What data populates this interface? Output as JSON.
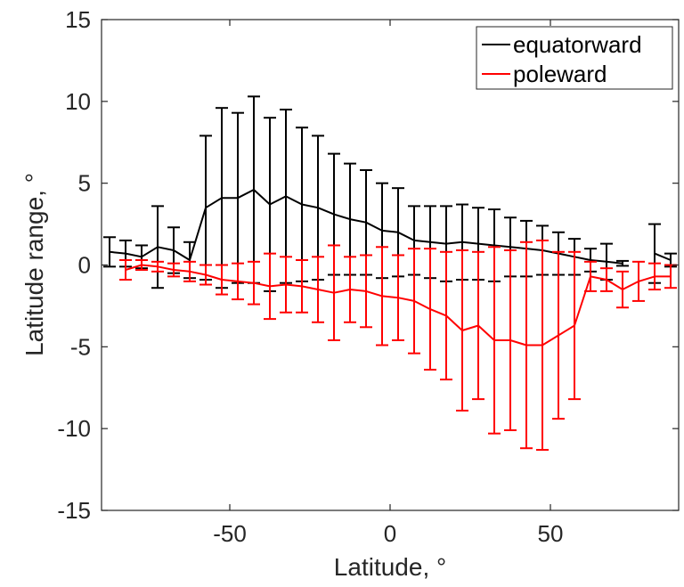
{
  "chart_data": {
    "type": "line",
    "xlabel": "Latitude, °",
    "ylabel": "Latitude range, °",
    "xlim": [
      -90,
      90
    ],
    "ylim": [
      -15,
      15
    ],
    "xticks": [
      -50,
      0,
      50
    ],
    "yticks": [
      -15,
      -10,
      -5,
      0,
      5,
      10,
      15
    ],
    "grid": false,
    "legend_position": "top-right",
    "series": [
      {
        "name": "equatorward",
        "color": "#000000",
        "segments": [
          {
            "x": [
              -87.5,
              -82.5,
              -77.5,
              -72.5,
              -67.5,
              -62.5,
              -57.5,
              -52.5,
              -47.5,
              -42.5,
              -37.5,
              -32.5,
              -27.5,
              -22.5,
              -17.5,
              -12.5,
              -7.5,
              -2.5,
              2.5,
              7.5,
              12.5,
              17.5,
              22.5,
              27.5,
              32.5,
              37.5,
              42.5,
              47.5,
              52.5,
              57.5,
              62.5,
              67.5,
              72.5
            ],
            "y": [
              0.8,
              0.7,
              0.5,
              1.1,
              0.9,
              0.3,
              3.5,
              4.1,
              4.1,
              4.6,
              3.7,
              4.2,
              3.7,
              3.5,
              3.1,
              2.8,
              2.6,
              2.1,
              2.0,
              1.5,
              1.4,
              1.3,
              1.4,
              1.3,
              1.2,
              1.1,
              1.0,
              0.9,
              0.7,
              0.5,
              0.3,
              0.2,
              0.1
            ],
            "err": [
              0.9,
              0.8,
              0.7,
              2.5,
              1.4,
              1.1,
              4.4,
              5.5,
              5.2,
              5.7,
              5.3,
              5.3,
              4.7,
              4.4,
              3.7,
              3.4,
              3.2,
              2.9,
              2.7,
              2.1,
              2.2,
              2.3,
              2.3,
              2.2,
              2.2,
              1.8,
              1.7,
              1.5,
              1.3,
              1.1,
              0.7,
              1.1,
              0.15
            ]
          },
          {
            "x": [
              82.5,
              87.5
            ],
            "y": [
              0.7,
              0.3
            ],
            "err": [
              1.8,
              0.4
            ]
          }
        ]
      },
      {
        "name": "poleward",
        "color": "#ff0000",
        "segments": [
          {
            "x": [
              -82.5,
              -77.5,
              -72.5,
              -67.5,
              -62.5,
              -57.5,
              -52.5,
              -47.5,
              -42.5,
              -37.5,
              -32.5,
              -27.5,
              -22.5,
              -17.5,
              -12.5,
              -7.5,
              -2.5,
              2.5,
              7.5,
              12.5,
              17.5,
              22.5,
              27.5,
              32.5,
              37.5,
              42.5,
              47.5,
              52.5,
              57.5,
              62.5,
              67.5,
              72.5,
              77.5,
              82.5,
              87.5
            ],
            "y": [
              -0.3,
              0.0,
              -0.1,
              -0.3,
              -0.4,
              -0.6,
              -0.9,
              -1.0,
              -1.1,
              -1.3,
              -1.2,
              -1.3,
              -1.5,
              -1.7,
              -1.5,
              -1.6,
              -1.9,
              -2.0,
              -2.2,
              -2.7,
              -3.1,
              -4.0,
              -3.7,
              -4.6,
              -4.6,
              -4.9,
              -4.9,
              -4.3,
              -3.7,
              -0.7,
              -0.9,
              -1.5,
              -1.0,
              -0.7,
              -0.7
            ],
            "err": [
              0.6,
              0.3,
              0.3,
              0.4,
              0.6,
              0.6,
              0.9,
              1.1,
              1.3,
              2.0,
              1.7,
              1.6,
              2.0,
              2.9,
              2.0,
              2.2,
              3.0,
              2.6,
              3.2,
              3.7,
              3.9,
              4.9,
              4.5,
              5.7,
              5.5,
              6.3,
              6.4,
              5.1,
              4.5,
              0.9,
              0.7,
              1.1,
              1.2,
              0.8,
              0.7
            ]
          }
        ]
      }
    ]
  }
}
